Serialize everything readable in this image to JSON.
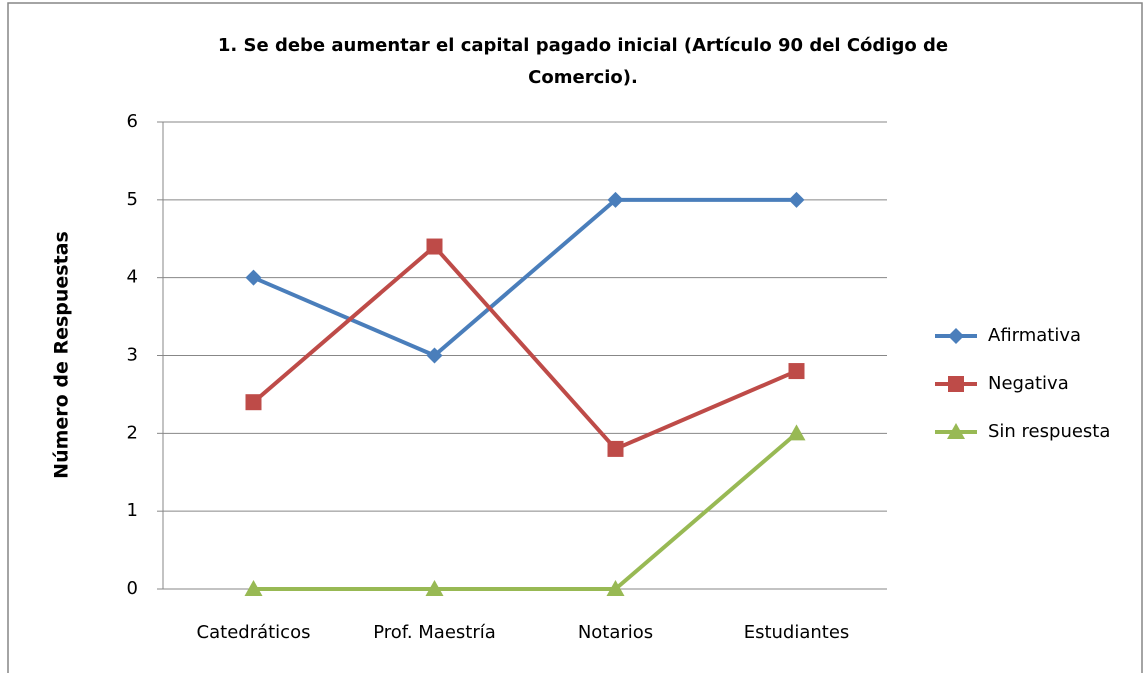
{
  "chart_data": {
    "type": "line",
    "title": "1. Se debe aumentar el capital pagado inicial (Artículo 90 del Código de Comercio).",
    "y_label": "Número de Respuestas",
    "categories": [
      "Catedráticos",
      "Prof. Maestría",
      "Notarios",
      "Estudiantes"
    ],
    "series": [
      {
        "name": "Afirmativa",
        "color": "#4a7ebb",
        "marker": "diamond",
        "values": [
          4,
          3,
          5,
          5
        ]
      },
      {
        "name": "Negativa",
        "color": "#be4b48",
        "marker": "square",
        "values": [
          2.4,
          4.4,
          1.8,
          2.8
        ]
      },
      {
        "name": "Sin respuesta",
        "color": "#98b954",
        "marker": "triangle",
        "values": [
          0,
          0,
          0,
          2
        ]
      }
    ],
    "ylim": [
      0,
      6
    ],
    "yticks": [
      0,
      1,
      2,
      3,
      4,
      5,
      6
    ],
    "grid": true,
    "legend": "right"
  }
}
